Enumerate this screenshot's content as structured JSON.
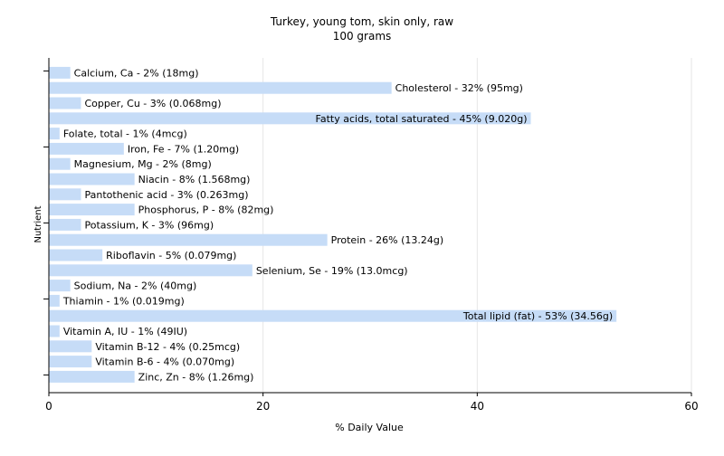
{
  "chart_data": {
    "type": "bar",
    "orientation": "horizontal",
    "title": "Turkey, young tom, skin only, raw",
    "subtitle": "100 grams",
    "xlabel": "% Daily Value",
    "ylabel": "Nutrient",
    "xlim": [
      0,
      60
    ],
    "xticks": [
      "0",
      "20",
      "40",
      "60"
    ],
    "grid": true,
    "bar_color": "#c6dcf7",
    "categories": [
      "Calcium, Ca",
      "Cholesterol",
      "Copper, Cu",
      "Fatty acids, total saturated",
      "Folate, total",
      "Iron, Fe",
      "Magnesium, Mg",
      "Niacin",
      "Pantothenic acid",
      "Phosphorus, P",
      "Potassium, K",
      "Protein",
      "Riboflavin",
      "Selenium, Se",
      "Sodium, Na",
      "Thiamin",
      "Total lipid (fat)",
      "Vitamin A, IU",
      "Vitamin B-12",
      "Vitamin B-6",
      "Zinc, Zn"
    ],
    "values": [
      2,
      32,
      3,
      45,
      1,
      7,
      2,
      8,
      3,
      8,
      3,
      26,
      5,
      19,
      2,
      1,
      53,
      1,
      4,
      4,
      8
    ],
    "labels": [
      "Calcium, Ca - 2% (18mg)",
      "Cholesterol - 32% (95mg)",
      "Copper, Cu - 3% (0.068mg)",
      "Fatty acids, total saturated - 45% (9.020g)",
      "Folate, total - 1% (4mcg)",
      "Iron, Fe - 7% (1.20mg)",
      "Magnesium, Mg - 2% (8mg)",
      "Niacin - 8% (1.568mg)",
      "Pantothenic acid - 3% (0.263mg)",
      "Phosphorus, P - 8% (82mg)",
      "Potassium, K - 3% (96mg)",
      "Protein - 26% (13.24g)",
      "Riboflavin - 5% (0.079mg)",
      "Selenium, Se - 19% (13.0mcg)",
      "Sodium, Na - 2% (40mg)",
      "Thiamin - 1% (0.019mg)",
      "Total lipid (fat) - 53% (34.56g)",
      "Vitamin A, IU - 1% (49IU)",
      "Vitamin B-12 - 4% (0.25mcg)",
      "Vitamin B-6 - 4% (0.070mg)",
      "Zinc, Zn - 8% (1.26mg)"
    ]
  }
}
